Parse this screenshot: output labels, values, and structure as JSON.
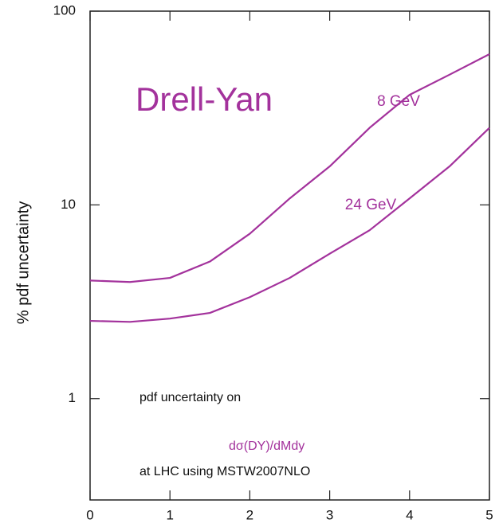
{
  "chart_data": {
    "type": "line",
    "ylabel": "% pdf uncertainty",
    "x": [
      0,
      0.5,
      1,
      1.5,
      2,
      2.5,
      3,
      3.5,
      4,
      4.5,
      5
    ],
    "series": [
      {
        "name": "8 GeV",
        "color": "#a3329c",
        "values": [
          4.07,
          4.0,
          4.2,
          5.1,
          7.1,
          10.8,
          15.8,
          25,
          37,
          47,
          60
        ]
      },
      {
        "name": "24 GeV",
        "color": "#a3329c",
        "values": [
          2.52,
          2.49,
          2.59,
          2.77,
          3.34,
          4.2,
          5.6,
          7.4,
          10.8,
          15.8,
          25
        ]
      }
    ],
    "xlim": [
      0,
      5
    ],
    "xticks": [
      0,
      1,
      2,
      3,
      4,
      5
    ],
    "ylim": [
      0.3,
      100
    ],
    "yticks": [
      1,
      10,
      100
    ],
    "ylog": true,
    "annotations": [
      {
        "text": "Drell-Yan",
        "color": "#a3329c"
      },
      {
        "text": "pdf uncertainty on",
        "color": "#111111"
      },
      {
        "text": "dσ(DY)/dMdy",
        "color": "#a3329c"
      },
      {
        "text": "at LHC using MSTW2007NLO",
        "color": "#111111"
      }
    ]
  }
}
